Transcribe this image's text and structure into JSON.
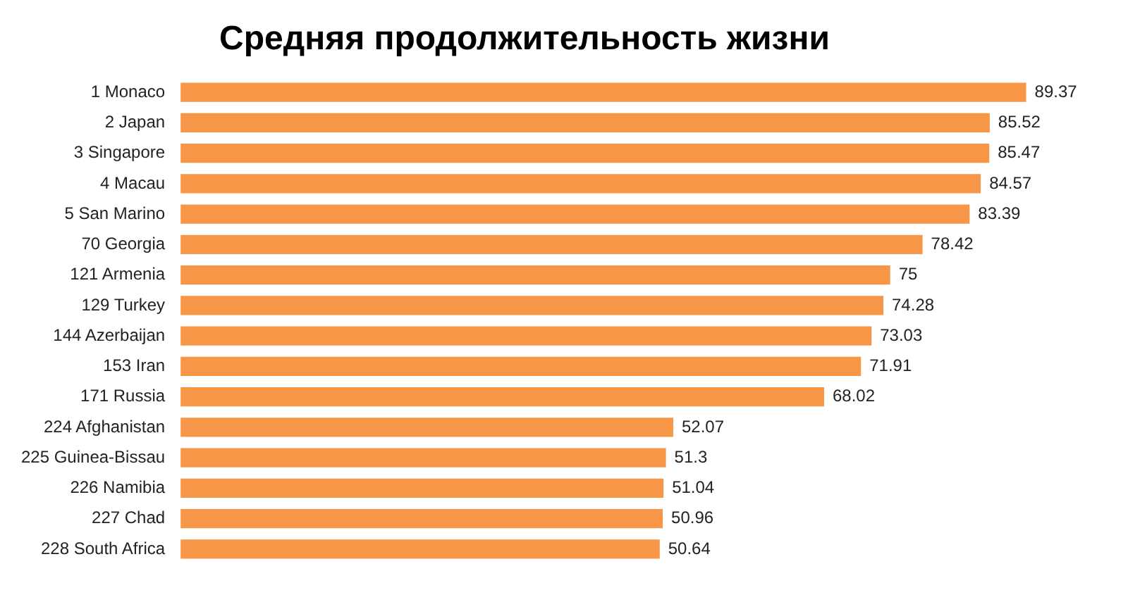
{
  "chart_data": {
    "type": "bar",
    "orientation": "horizontal",
    "title": "Средняя продолжительность жизни",
    "categories": [
      "1 Monaco",
      "2 Japan",
      "3 Singapore",
      "4 Macau",
      "5 San Marino",
      "70 Georgia",
      "121 Armenia",
      "129 Turkey",
      "144 Azerbaijan",
      "153 Iran",
      "171 Russia",
      "224 Afghanistan",
      "225 Guinea-Bissau",
      "226 Namibia",
      "227 Chad",
      "228 South Africa"
    ],
    "values": [
      89.37,
      85.52,
      85.47,
      84.57,
      83.39,
      78.42,
      75,
      74.28,
      73.03,
      71.91,
      68.02,
      52.07,
      51.3,
      51.04,
      50.96,
      50.64
    ],
    "color": "#f79646",
    "data_labels": true,
    "grid": false,
    "legend": false
  }
}
